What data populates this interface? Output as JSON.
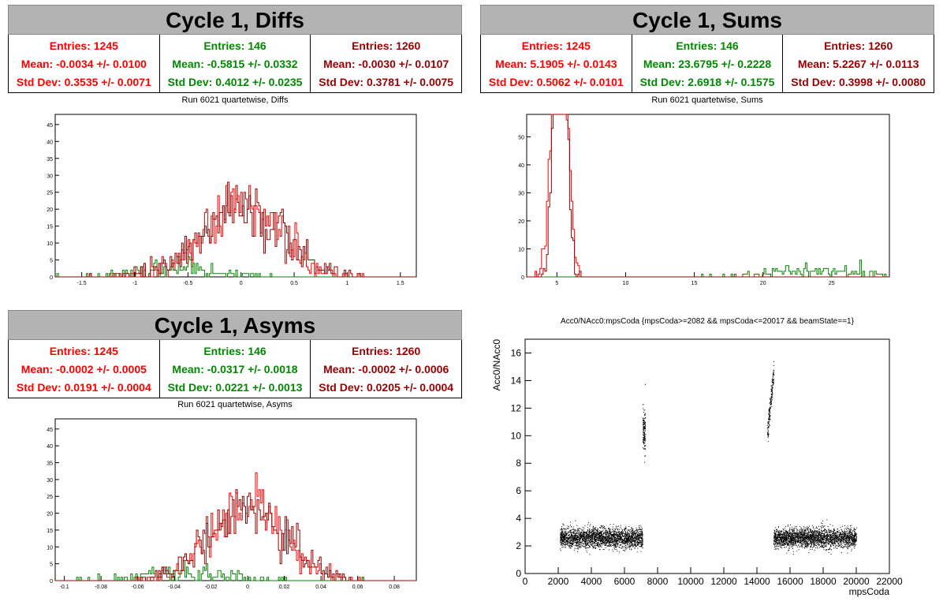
{
  "colors": {
    "red": "#ff0000",
    "green": "#008800",
    "darkred": "#990000"
  },
  "panels": [
    {
      "title": "Cycle 1, Diffs",
      "subtitle": "Run 6021 quartetwise, Diffs",
      "stats": [
        {
          "entries": "Entries: 1245",
          "mean": "Mean: -0.0034 +/- 0.0100",
          "std": "Std Dev: 0.3535 +/- 0.0071"
        },
        {
          "entries": "Entries: 146",
          "mean": "Mean: -0.5815 +/- 0.0332",
          "std": "Std Dev: 0.4012 +/- 0.0235"
        },
        {
          "entries": "Entries: 1260",
          "mean": "Mean: -0.0030 +/- 0.0107",
          "std": "Std Dev: 0.3781 +/- 0.0075"
        }
      ]
    },
    {
      "title": "Cycle 1, Sums",
      "subtitle": "Run 6021 quartetwise, Sums",
      "stats": [
        {
          "entries": "Entries: 1245",
          "mean": "Mean: 5.1905 +/- 0.0143",
          "std": "Std Dev: 0.5062 +/- 0.0101"
        },
        {
          "entries": "Entries: 146",
          "mean": "Mean: 23.6795 +/- 0.2228",
          "std": "Std Dev: 2.6918 +/- 0.1575"
        },
        {
          "entries": "Entries: 1260",
          "mean": "Mean: 5.2267 +/- 0.0113",
          "std": "Std Dev: 0.3998 +/- 0.0080"
        }
      ]
    },
    {
      "title": "Cycle 1, Asyms",
      "subtitle": "Run 6021 quartetwise, Asyms",
      "stats": [
        {
          "entries": "Entries: 1245",
          "mean": "Mean: -0.0002 +/- 0.0005",
          "std": "Std Dev: 0.0191 +/- 0.0004"
        },
        {
          "entries": "Entries: 146",
          "mean": "Mean: -0.0317 +/- 0.0018",
          "std": "Std Dev: 0.0221 +/- 0.0013"
        },
        {
          "entries": "Entries: 1260",
          "mean": "Mean: -0.0002 +/- 0.0006",
          "std": "Std Dev: 0.0205 +/- 0.0004"
        }
      ]
    }
  ],
  "chart_data": [
    {
      "type": "bar",
      "title": "Run 6021 quartetwise, Diffs",
      "xlim": [
        -1.75,
        1.65
      ],
      "ylim": [
        0,
        48
      ],
      "xticks": [
        -1.5,
        -1,
        -0.5,
        0,
        0.5,
        1,
        1.5
      ],
      "xtick_labels": [
        "-1.5",
        "-1",
        "-0.5",
        "0",
        "0.5",
        "1",
        "1.5"
      ],
      "yticks": [
        0,
        5,
        10,
        15,
        20,
        25,
        30,
        35,
        40,
        45
      ],
      "series": [
        {
          "color": "#ff0000",
          "mean": -0.0034,
          "std": 0.3535,
          "entries": 1245
        },
        {
          "color": "#008800",
          "mean": -0.5815,
          "std": 0.4012,
          "entries": 146
        },
        {
          "color": "#990000",
          "mean": -0.003,
          "std": 0.3781,
          "entries": 1260
        }
      ]
    },
    {
      "type": "bar",
      "title": "Run 6021 quartetwise, Sums",
      "xlim": [
        2.8,
        29.2
      ],
      "ylim": [
        0,
        58
      ],
      "xticks": [
        5,
        10,
        15,
        20,
        25
      ],
      "xtick_labels": [
        "5",
        "10",
        "15",
        "20",
        "25"
      ],
      "yticks": [
        0,
        10,
        20,
        30,
        40,
        50
      ],
      "series": [
        {
          "color": "#ff0000",
          "mean": 5.1905,
          "std": 0.5062,
          "entries": 1245
        },
        {
          "color": "#008800",
          "mean": 23.6795,
          "std": 2.6918,
          "entries": 146
        },
        {
          "color": "#990000",
          "mean": 5.2267,
          "std": 0.3998,
          "entries": 1260
        }
      ]
    },
    {
      "type": "bar",
      "title": "Run 6021 quartetwise, Asyms",
      "xlim": [
        -0.105,
        0.092
      ],
      "ylim": [
        0,
        48
      ],
      "xticks": [
        -0.1,
        -0.08,
        -0.06,
        -0.04,
        -0.02,
        0,
        0.02,
        0.04,
        0.06,
        0.08
      ],
      "xtick_labels": [
        "-0.1",
        "-0.08",
        "-0.06",
        "-0.04",
        "-0.02",
        "0",
        "0.02",
        "0.04",
        "0.06",
        "0.08"
      ],
      "yticks": [
        0,
        5,
        10,
        15,
        20,
        25,
        30,
        35,
        40,
        45
      ],
      "series": [
        {
          "color": "#ff0000",
          "mean": -0.0002,
          "std": 0.0191,
          "entries": 1245
        },
        {
          "color": "#008800",
          "mean": -0.0317,
          "std": 0.0221,
          "entries": 146
        },
        {
          "color": "#990000",
          "mean": -0.0002,
          "std": 0.0205,
          "entries": 1260
        }
      ]
    },
    {
      "type": "scatter",
      "title": "Acc0/NAcc0:mpsCoda {mpsCoda>=2082 && mpsCoda<=20017 && beamState==1}",
      "xlabel": "mpsCoda",
      "ylabel": "Acc0/NAcc0",
      "xlim": [
        0,
        22000
      ],
      "ylim": [
        0,
        17
      ],
      "xticks": [
        0,
        2000,
        4000,
        6000,
        8000,
        10000,
        12000,
        14000,
        16000,
        18000,
        20000,
        22000
      ],
      "xtick_labels": [
        "0",
        "2000",
        "4000",
        "6000",
        "8000",
        "10000",
        "12000",
        "14000",
        "16000",
        "18000",
        "20000",
        "22000"
      ],
      "yticks": [
        0,
        2,
        4,
        6,
        8,
        10,
        12,
        14,
        16
      ],
      "ytick_labels": [
        "0",
        "2",
        "4",
        "6",
        "8",
        "10",
        "12",
        "14",
        "16"
      ],
      "clusters": [
        {
          "x_range": [
            2100,
            7100
          ],
          "y_center": 2.6,
          "y_spread": 0.35
        },
        {
          "x_range": [
            7100,
            7250
          ],
          "y_center": 10.3,
          "y_spread": 0.8
        },
        {
          "x_range": [
            14600,
            15000
          ],
          "y_center": 11.8,
          "y_spread": 1.8
        },
        {
          "x_range": [
            15000,
            20000
          ],
          "y_center": 2.6,
          "y_spread": 0.35
        }
      ]
    }
  ]
}
